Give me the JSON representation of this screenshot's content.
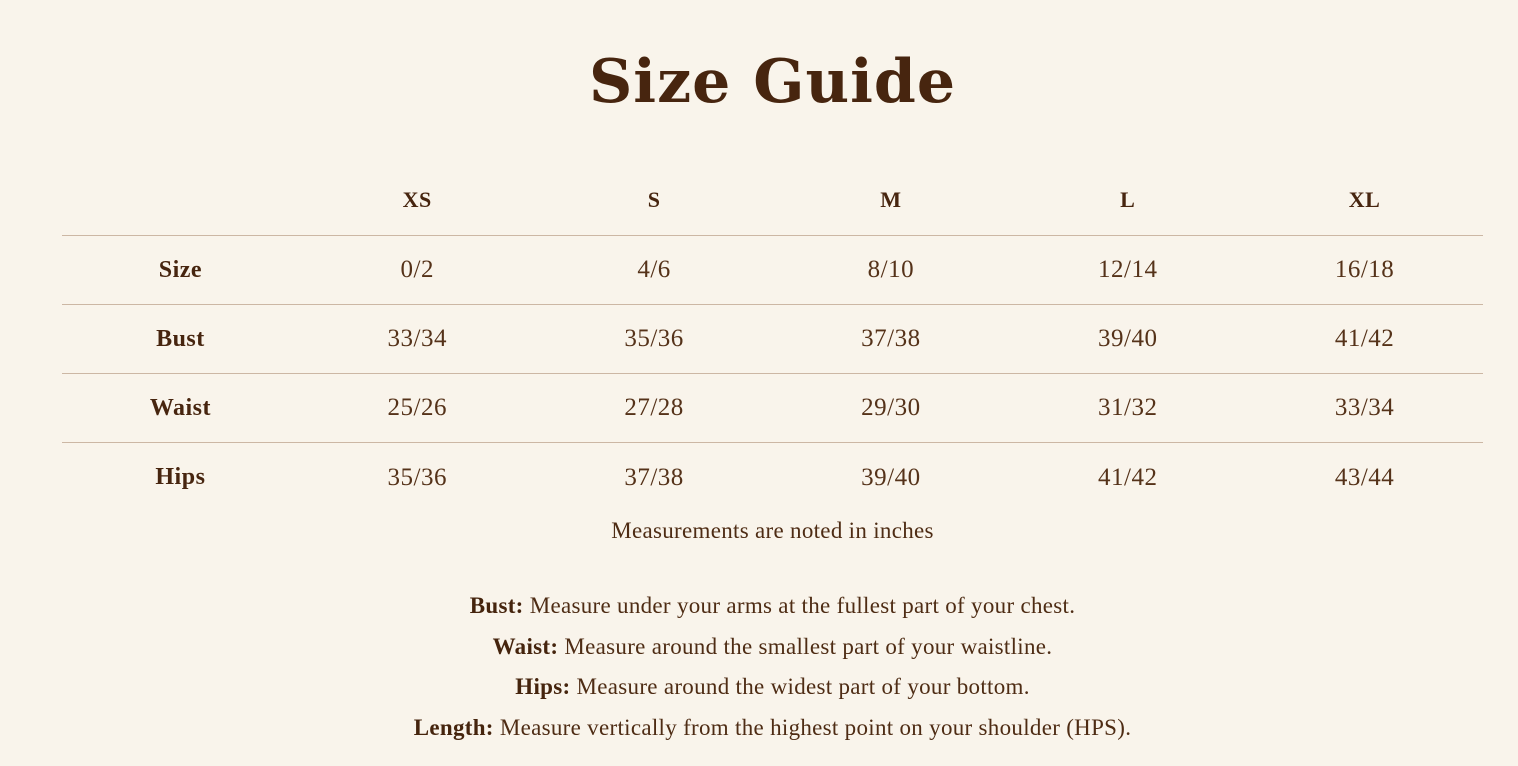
{
  "title": "Size Guide",
  "colors": {
    "background": "#f9f4eb",
    "heading_text": "#47250f",
    "body_text": "#4e2c14",
    "divider": "#ccb7a4"
  },
  "size_table": {
    "columns": [
      "",
      "XS",
      "S",
      "M",
      "L",
      "XL"
    ],
    "rows": [
      {
        "label": "Size",
        "values": [
          "0/2",
          "4/6",
          "8/10",
          "12/14",
          "16/18"
        ]
      },
      {
        "label": "Bust",
        "values": [
          "33/34",
          "35/36",
          "37/38",
          "39/40",
          "41/42"
        ]
      },
      {
        "label": "Waist",
        "values": [
          "25/26",
          "27/28",
          "29/30",
          "31/32",
          "33/34"
        ]
      },
      {
        "label": "Hips",
        "values": [
          "35/36",
          "37/38",
          "39/40",
          "41/42",
          "43/44"
        ]
      }
    ]
  },
  "units_note": "Measurements are noted in inches",
  "instructions": [
    {
      "term": "Bust:",
      "text": "Measure under your arms at the fullest part of your chest."
    },
    {
      "term": "Waist:",
      "text": "Measure around the smallest part of your waistline."
    },
    {
      "term": "Hips:",
      "text": "Measure around the widest part of your bottom."
    },
    {
      "term": "Length:",
      "text": "Measure vertically from the highest point on your shoulder (HPS)."
    }
  ]
}
